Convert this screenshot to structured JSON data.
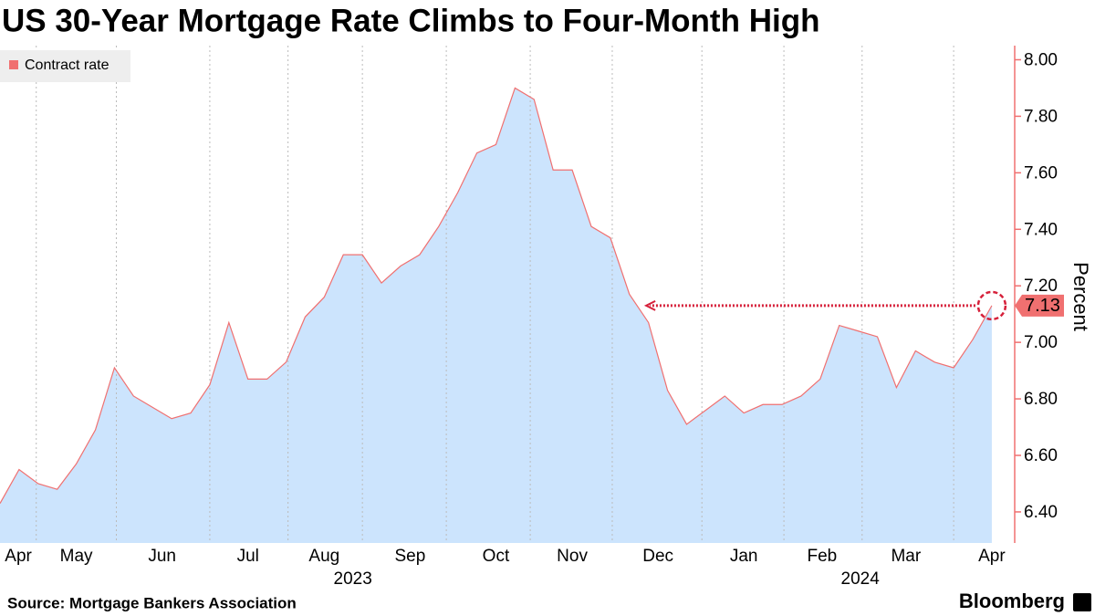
{
  "chart_data": {
    "type": "area",
    "title": "US 30-Year Mortgage Rate Climbs to Four-Month High",
    "y_label": "Percent",
    "source": "Source: Mortgage Bankers Association",
    "brand": "Bloomberg",
    "x": [
      0,
      1,
      2,
      3,
      4,
      5,
      6,
      7,
      8,
      9,
      10,
      11,
      12,
      13,
      14,
      15,
      16,
      17,
      18,
      19,
      20,
      21,
      22,
      23,
      24,
      25,
      26,
      27,
      28,
      29,
      30,
      31,
      32,
      33,
      34,
      35,
      36,
      37,
      38,
      39,
      40,
      41,
      42,
      43,
      44,
      45,
      46,
      47,
      48,
      49,
      50,
      51,
      52
    ],
    "series": [
      {
        "name": "Contract rate",
        "color": "#f07070",
        "fill": "#cce4fd",
        "values": [
          6.43,
          6.55,
          6.5,
          6.48,
          6.57,
          6.69,
          6.91,
          6.81,
          6.77,
          6.73,
          6.75,
          6.85,
          7.07,
          6.87,
          6.87,
          6.93,
          7.09,
          7.16,
          7.31,
          7.31,
          7.21,
          7.27,
          7.31,
          7.41,
          7.53,
          7.67,
          7.7,
          7.9,
          7.86,
          7.61,
          7.61,
          7.41,
          7.37,
          7.17,
          7.07,
          6.83,
          6.71,
          6.76,
          6.81,
          6.75,
          6.78,
          6.78,
          6.81,
          6.87,
          7.06,
          7.04,
          7.02,
          6.84,
          6.97,
          6.93,
          6.91,
          7.01,
          7.13
        ]
      }
    ],
    "xlim": [
      0,
      53.2
    ],
    "xticks": [
      {
        "value": 0.96,
        "label": "Apr"
      },
      {
        "value": 4.0,
        "label": "May"
      },
      {
        "value": 8.5,
        "label": "Jun"
      },
      {
        "value": 13.0,
        "label": "Jul"
      },
      {
        "value": 17.0,
        "label": "Aug"
      },
      {
        "value": 21.5,
        "label": "Sep"
      },
      {
        "value": 26.0,
        "label": "Oct"
      },
      {
        "value": 30.0,
        "label": "Nov"
      },
      {
        "value": 34.5,
        "label": "Dec"
      },
      {
        "value": 39.0,
        "label": "Jan"
      },
      {
        "value": 43.1,
        "label": "Feb"
      },
      {
        "value": 47.5,
        "label": "Mar"
      },
      {
        "value": 52.0,
        "label": "Apr"
      }
    ],
    "year_ticks": [
      {
        "value": 18.5,
        "label": "2023"
      },
      {
        "value": 45.1,
        "label": "2024"
      }
    ],
    "x_gridlines": [
      1.9,
      6.1,
      11.0,
      15.1,
      19.0,
      23.4,
      27.8,
      32.1,
      36.8,
      41.1,
      45.2,
      50.0
    ],
    "ylim": [
      6.29,
      8.05
    ],
    "yticks": [
      {
        "value": 6.4,
        "label": "6.40"
      },
      {
        "value": 6.6,
        "label": "6.60"
      },
      {
        "value": 6.8,
        "label": "6.80"
      },
      {
        "value": 7,
        "label": "7.00"
      },
      {
        "value": 7.2,
        "label": "7.20"
      },
      {
        "value": 7.4,
        "label": "7.40"
      },
      {
        "value": 7.6,
        "label": "7.60"
      },
      {
        "value": 7.8,
        "label": "7.80"
      },
      {
        "value": 8,
        "label": "8.00"
      }
    ],
    "legend": "top-left"
  }
}
